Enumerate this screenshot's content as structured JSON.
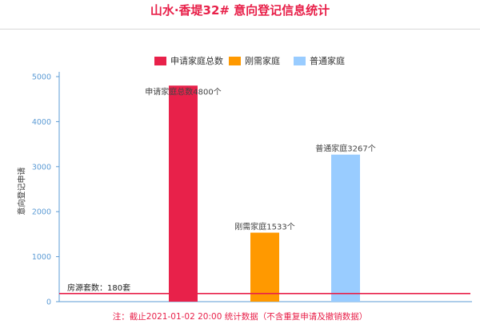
{
  "title": "山水·香堤32# 意向登记信息统计",
  "note": "注：截止2021-01-02 20:00 统计数据（不含重复申请及撤销数据）",
  "chart_data": {
    "type": "bar",
    "title": "山水·香堤32# 意向登记信息统计",
    "ylabel": "意向登记申请",
    "xlabel": "",
    "ylim": [
      0,
      5000
    ],
    "yticks": [
      0,
      1000,
      2000,
      3000,
      4000,
      5000
    ],
    "grid": false,
    "legend_position": "top",
    "series": [
      {
        "name": "申请家庭总数",
        "value": 4800,
        "color": "#e8214a",
        "label": "申请家庭总数4800个"
      },
      {
        "name": "刚需家庭",
        "value": 1533,
        "color": "#ff9900",
        "label": "刚需家庭1533个"
      },
      {
        "name": "普通家庭",
        "value": 3267,
        "color": "#99ccff",
        "label": "普通家庭3267个"
      }
    ],
    "reference_line": {
      "value": 180,
      "label": "房源套数：180套",
      "color": "#e8214a"
    },
    "axis_color": "#5b9bd5"
  }
}
